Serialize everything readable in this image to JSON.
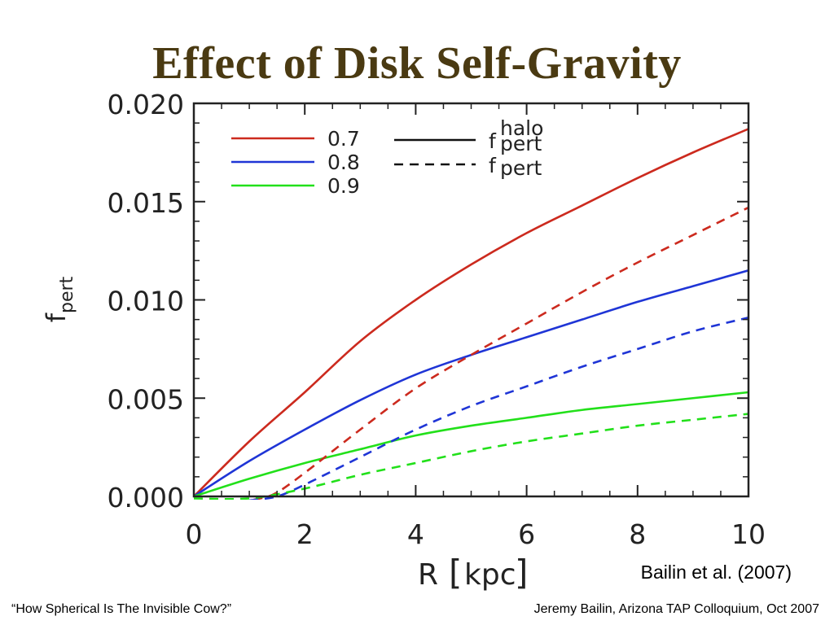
{
  "slide": {
    "title": "Effect of Disk Self-Gravity",
    "citation": "Bailin et al. (2007)",
    "footer_left": "“How Spherical Is The Invisible Cow?”",
    "footer_right": "Jeremy Bailin, Arizona TAP Colloquium, Oct 2007"
  },
  "chart_data": {
    "type": "line",
    "title": "",
    "xlabel": "R",
    "xlabel_unit": "kpc",
    "ylabel_base": "f",
    "ylabel_sub": "pert",
    "xlim": [
      0,
      10
    ],
    "ylim": [
      0,
      0.02
    ],
    "xticks": [
      0,
      2,
      4,
      6,
      8,
      10
    ],
    "ytick_labels": [
      "0.000",
      "0.005",
      "0.010",
      "0.015",
      "0.020"
    ],
    "yticks": [
      0,
      0.005,
      0.01,
      0.015,
      0.02
    ],
    "grid": false,
    "legend_placement": "top-left",
    "legend": {
      "colors": [
        {
          "label": "0.7",
          "color": "#cc2a1e"
        },
        {
          "label": "0.8",
          "color": "#1f35d6"
        },
        {
          "label": "0.9",
          "color": "#22e01a"
        }
      ],
      "styles": [
        {
          "style": "solid",
          "base": "f",
          "sup": "halo",
          "sub": "pert"
        },
        {
          "style": "dashed",
          "base": "f",
          "sup": "",
          "sub": "pert"
        }
      ]
    },
    "series": [
      {
        "name": "0.7",
        "style": "solid",
        "color": "#cc2a1e",
        "x": [
          0,
          1,
          2,
          3,
          4,
          5,
          6,
          7,
          8,
          9,
          10
        ],
        "y": [
          0,
          0.0028,
          0.0053,
          0.0079,
          0.01,
          0.0118,
          0.0134,
          0.0148,
          0.0162,
          0.0175,
          0.0187
        ]
      },
      {
        "name": "0.8",
        "style": "solid",
        "color": "#1f35d6",
        "x": [
          0,
          1,
          2,
          3,
          4,
          5,
          6,
          7,
          8,
          9,
          10
        ],
        "y": [
          0,
          0.0018,
          0.0034,
          0.0049,
          0.0062,
          0.0072,
          0.0081,
          0.009,
          0.0099,
          0.0107,
          0.0115
        ]
      },
      {
        "name": "0.9",
        "style": "solid",
        "color": "#22e01a",
        "x": [
          0,
          1,
          2,
          3,
          4,
          5,
          6,
          7,
          8,
          9,
          10
        ],
        "y": [
          0,
          0.0009,
          0.0017,
          0.0024,
          0.0031,
          0.0036,
          0.004,
          0.0044,
          0.0047,
          0.005,
          0.0053
        ]
      },
      {
        "name": "0.7",
        "style": "dashed",
        "color": "#cc2a1e",
        "x": [
          0.8,
          1.2,
          1.5,
          2,
          3,
          4,
          5,
          6,
          7,
          8,
          9,
          10
        ],
        "y": [
          -0.0003,
          -0.0001,
          0.0002,
          0.0012,
          0.0034,
          0.0055,
          0.0072,
          0.0088,
          0.0104,
          0.0119,
          0.0133,
          0.0147
        ]
      },
      {
        "name": "0.8",
        "style": "dashed",
        "color": "#1f35d6",
        "x": [
          1.0,
          1.5,
          2,
          3,
          4,
          5,
          6,
          7,
          8,
          9,
          10
        ],
        "y": [
          -0.0002,
          0.0,
          0.0006,
          0.002,
          0.0034,
          0.0046,
          0.0056,
          0.0066,
          0.0075,
          0.0084,
          0.0091
        ]
      },
      {
        "name": "0.9",
        "style": "dashed",
        "color": "#22e01a",
        "x": [
          0,
          1,
          2,
          3,
          4,
          5,
          6,
          7,
          8,
          9,
          10
        ],
        "y": [
          -0.0001,
          -0.0001,
          0.0004,
          0.0011,
          0.0017,
          0.0023,
          0.0028,
          0.0032,
          0.0036,
          0.0039,
          0.0042
        ]
      }
    ]
  }
}
